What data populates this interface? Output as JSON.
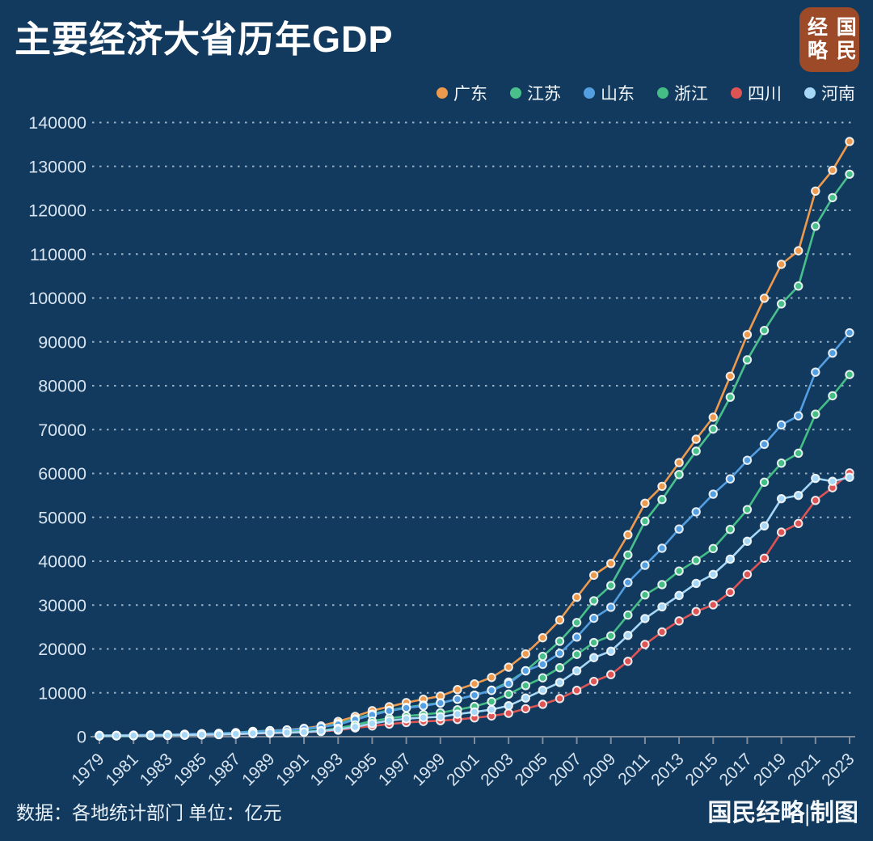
{
  "title": "主要经济大省历年GDP",
  "logo": {
    "left": "经略",
    "right": "国民"
  },
  "footer": {
    "source": "数据：各地统计部门 单位：亿元",
    "credit": "国民经略|制图"
  },
  "style_colors": {
    "background": "#123A5E",
    "grid": "#C7D9E8",
    "axis": "#7E8C9B",
    "tick_label": "#D7E3EF",
    "title_text": "#FFFFFF",
    "logo_background": "#9C4A27"
  },
  "chart_data": {
    "type": "line",
    "unit": "亿元",
    "x": [
      1979,
      1980,
      1981,
      1982,
      1983,
      1984,
      1985,
      1986,
      1987,
      1988,
      1989,
      1990,
      1991,
      1992,
      1993,
      1994,
      1995,
      1996,
      1997,
      1998,
      1999,
      2000,
      2001,
      2002,
      2003,
      2004,
      2005,
      2006,
      2007,
      2008,
      2009,
      2010,
      2011,
      2012,
      2013,
      2014,
      2015,
      2016,
      2017,
      2018,
      2019,
      2020,
      2021,
      2022,
      2023
    ],
    "x_tick_labels": [
      "1979",
      "1981",
      "1983",
      "1985",
      "1987",
      "1989",
      "1991",
      "1993",
      "1995",
      "1997",
      "1999",
      "2001",
      "2003",
      "2005",
      "2007",
      "2009",
      "2011",
      "2013",
      "2015",
      "2017",
      "2019",
      "2021",
      "2023"
    ],
    "ylim": [
      0,
      140000
    ],
    "y_ticks": [
      0,
      10000,
      20000,
      30000,
      40000,
      50000,
      60000,
      70000,
      80000,
      90000,
      100000,
      110000,
      120000,
      130000,
      140000
    ],
    "grid": "dotted-horizontal",
    "legend_position": "top-right",
    "series": [
      {
        "name": "广东",
        "color": "#EE9A4E",
        "values": [
          209,
          250,
          290,
          340,
          369,
          459,
          577,
          668,
          847,
          1155,
          1381,
          1559,
          1893,
          2448,
          3469,
          4619,
          5933,
          6835,
          7775,
          8531,
          9251,
          10741,
          12039,
          13502,
          15845,
          18865,
          22557,
          26588,
          31777,
          36797,
          39483,
          46013,
          53210,
          57068,
          62475,
          67810,
          72813,
          82163,
          91649,
          99945,
          107671,
          110761,
          124370,
          129119,
          135673
        ]
      },
      {
        "name": "江苏",
        "color": "#49C08C",
        "values": [
          299,
          320,
          351,
          390,
          438,
          520,
          652,
          745,
          922,
          1209,
          1322,
          1417,
          1601,
          2136,
          2998,
          4057,
          5155,
          6004,
          6680,
          7200,
          7698,
          8554,
          9457,
          10607,
          12443,
          15004,
          18306,
          21742,
          26018,
          30982,
          34457,
          41425,
          49110,
          54058,
          59753,
          65088,
          70116,
          77388,
          85901,
          92595,
          98656,
          102719,
          116364,
          122876,
          128222
        ]
      },
      {
        "name": "山东",
        "color": "#549EE2",
        "values": [
          253,
          292,
          334,
          395,
          459,
          566,
          680,
          743,
          892,
          1118,
          1293,
          1511,
          1811,
          2197,
          2770,
          3872,
          4953,
          5884,
          6537,
          7021,
          7662,
          8542,
          9438,
          10552,
          12078,
          15022,
          16500,
          19000,
          22700,
          27000,
          29500,
          35137,
          39065,
          42957,
          47344,
          51253,
          55289,
          58763,
          63012,
          66649,
          71068,
          73129,
          83096,
          87435,
          92069
        ]
      },
      {
        "name": "浙江",
        "color": "#45BE86",
        "values": [
          158,
          180,
          205,
          234,
          257,
          323,
          429,
          502,
          607,
          770,
          849,
          905,
          1089,
          1365,
          1926,
          2689,
          3558,
          4189,
          4686,
          5053,
          5444,
          6141,
          6898,
          8004,
          9705,
          11649,
          13418,
          15718,
          18754,
          21463,
          22990,
          27722,
          32319,
          34665,
          37757,
          40173,
          42886,
          47251,
          51768,
          58003,
          62352,
          64613,
          73516,
          77715,
          82553
        ]
      },
      {
        "name": "四川",
        "color": "#DE5454",
        "values": [
          206,
          229,
          244,
          277,
          315,
          365,
          421,
          471,
          559,
          704,
          794,
          891,
          1016,
          1177,
          1486,
          2001,
          2443,
          2872,
          3241,
          3474,
          3649,
          3928,
          4293,
          4725,
          5333,
          6380,
          7385,
          8690,
          10562,
          12601,
          14151,
          17185,
          21027,
          23873,
          26392,
          28537,
          30053,
          32935,
          36980,
          40678,
          46616,
          48599,
          53851,
          56750,
          60133
        ]
      },
      {
        "name": "河南",
        "color": "#A6D7F6",
        "values": [
          193,
          229,
          250,
          263,
          327,
          395,
          452,
          502,
          618,
          749,
          873,
          935,
          1046,
          1280,
          1663,
          2217,
          3003,
          3661,
          4079,
          4357,
          4518,
          5138,
          5640,
          6169,
          7049,
          8815,
          10587,
          12363,
          15012,
          18019,
          19480,
          23092,
          26931,
          29599,
          32191,
          34938,
          37002,
          40472,
          44553,
          48056,
          54259,
          54997,
          58887,
          58220,
          59132
        ]
      }
    ]
  }
}
